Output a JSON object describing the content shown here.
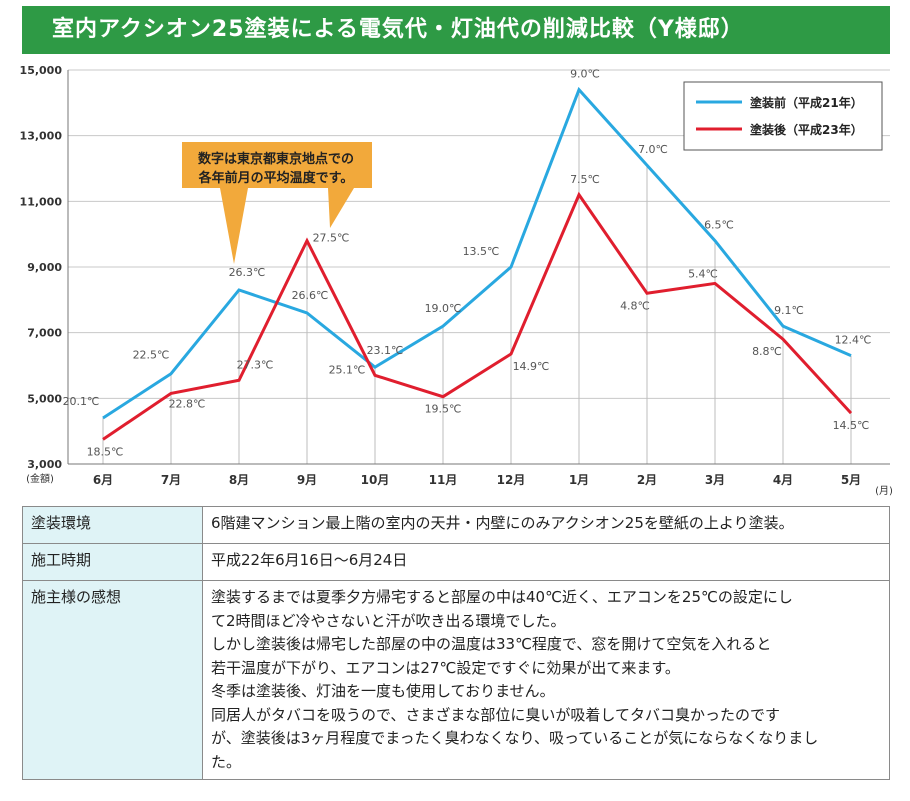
{
  "title": "室内アクシオン25塗装による電気代・灯油代の削減比較（Y様邸）",
  "chart_data": {
    "type": "line",
    "categories": [
      "6月",
      "7月",
      "8月",
      "9月",
      "10月",
      "11月",
      "12月",
      "1月",
      "2月",
      "3月",
      "4月",
      "5月"
    ],
    "x_unit": "(月)",
    "y_unit": "(金額)",
    "ylim": [
      3000,
      15000
    ],
    "yticks": [
      3000,
      5000,
      7000,
      9000,
      11000,
      13000,
      15000
    ],
    "ytick_labels": [
      "3,000",
      "5,000",
      "7,000",
      "9,000",
      "11,000",
      "13,000",
      "15,000"
    ],
    "grid": true,
    "legend_position": "top-right",
    "series": [
      {
        "name": "塗装前（平成21年）",
        "color": "#29a8e0",
        "values": [
          4400,
          5750,
          8300,
          7600,
          5950,
          7200,
          9000,
          14400,
          12100,
          9800,
          7200,
          6300
        ],
        "labels": [
          "20.1℃",
          "22.5℃",
          "26.3℃",
          "26.6℃",
          "23.1℃",
          "19.0℃",
          "13.5℃",
          "9.0℃",
          "7.0℃",
          "6.5℃",
          "9.1℃",
          "12.4℃"
        ]
      },
      {
        "name": "塗装後（平成23年）",
        "color": "#e01e2e",
        "values": [
          3750,
          5150,
          5550,
          9800,
          5700,
          5050,
          6350,
          11200,
          8200,
          8500,
          6800,
          4550
        ],
        "labels": [
          "18.5℃",
          "22.8℃",
          "27.3℃",
          "27.5℃",
          "25.1℃",
          "19.5℃",
          "14.9℃",
          "7.5℃",
          "4.8℃",
          "5.4℃",
          "8.8℃",
          "14.5℃"
        ]
      }
    ],
    "annotation": {
      "lines": [
        "数字は東京都東京地点での",
        "各年前月の平均温度です。"
      ],
      "color": "#f2a93b"
    }
  },
  "table": {
    "rows": [
      {
        "label": "塗装環境",
        "value": [
          "6階建マンション最上階の室内の天井・内壁にのみアクシオン25を壁紙の上より塗装。"
        ]
      },
      {
        "label": "施工時期",
        "value": [
          "平成22年6月16日〜6月24日"
        ]
      },
      {
        "label": "施主様の感想",
        "value": [
          "塗装するまでは夏季夕方帰宅すると部屋の中は40℃近く、エアコンを25℃の設定にし",
          "て2時間ほど冷やさないと汗が吹き出る環境でした。",
          "しかし塗装後は帰宅した部屋の中の温度は33℃程度で、窓を開けて空気を入れると",
          "若干温度が下がり、エアコンは27℃設定ですぐに効果が出て来ます。",
          "冬季は塗装後、灯油を一度も使用しておりません。",
          "同居人がタバコを吸うので、さまざまな部位に臭いが吸着してタバコ臭かったのです",
          "が、塗装後は3ヶ月程度でまったく臭わなくなり、吸っていることが気にならなくなりまし",
          "た。"
        ]
      }
    ]
  }
}
